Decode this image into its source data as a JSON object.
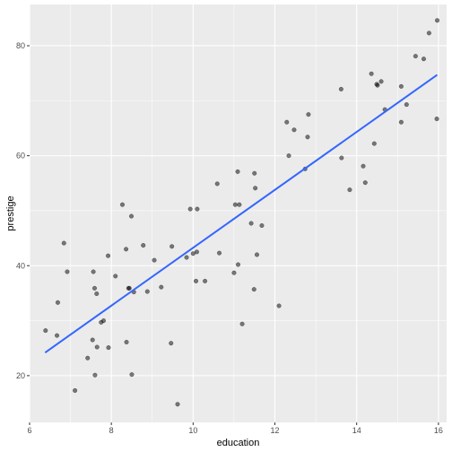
{
  "chart_data": {
    "type": "scatter",
    "title": "",
    "xlabel": "education",
    "ylabel": "prestige",
    "xlim": [
      6.0,
      16.2
    ],
    "ylim": [
      11.5,
      87.5
    ],
    "x_ticks": [
      6,
      8,
      10,
      12,
      14,
      16
    ],
    "x_tick_labels": [
      "6",
      "8",
      "10",
      "12",
      "14",
      "16"
    ],
    "y_ticks": [
      20,
      40,
      60,
      80
    ],
    "y_tick_labels": [
      "20",
      "40",
      "60",
      "80"
    ],
    "grid": true,
    "legend": "none",
    "colors": {
      "panel_background": "#EBEBEB",
      "grid_major": "#FFFFFF",
      "points": "#000000",
      "fit_line": "#3366FF"
    },
    "points": [
      {
        "x": 6.39,
        "y": 28.2
      },
      {
        "x": 6.67,
        "y": 27.3
      },
      {
        "x": 6.69,
        "y": 33.3
      },
      {
        "x": 6.84,
        "y": 44.1
      },
      {
        "x": 6.92,
        "y": 38.9
      },
      {
        "x": 7.11,
        "y": 17.3
      },
      {
        "x": 7.42,
        "y": 23.2
      },
      {
        "x": 7.54,
        "y": 26.5
      },
      {
        "x": 7.56,
        "y": 38.9
      },
      {
        "x": 7.59,
        "y": 35.9
      },
      {
        "x": 7.6,
        "y": 20.1
      },
      {
        "x": 7.64,
        "y": 34.9
      },
      {
        "x": 7.65,
        "y": 25.2
      },
      {
        "x": 7.75,
        "y": 29.7
      },
      {
        "x": 7.81,
        "y": 30.0
      },
      {
        "x": 7.92,
        "y": 41.8
      },
      {
        "x": 7.93,
        "y": 25.1
      },
      {
        "x": 8.1,
        "y": 38.1
      },
      {
        "x": 8.27,
        "y": 51.1
      },
      {
        "x": 8.36,
        "y": 43.0
      },
      {
        "x": 8.37,
        "y": 26.1
      },
      {
        "x": 8.42,
        "y": 35.9
      },
      {
        "x": 8.44,
        "y": 35.9
      },
      {
        "x": 8.49,
        "y": 49.0
      },
      {
        "x": 8.5,
        "y": 20.2
      },
      {
        "x": 8.55,
        "y": 35.2
      },
      {
        "x": 8.78,
        "y": 43.7
      },
      {
        "x": 8.88,
        "y": 35.3
      },
      {
        "x": 9.05,
        "y": 41.0
      },
      {
        "x": 9.22,
        "y": 36.1
      },
      {
        "x": 9.46,
        "y": 25.9
      },
      {
        "x": 9.48,
        "y": 43.5
      },
      {
        "x": 9.62,
        "y": 14.8
      },
      {
        "x": 9.84,
        "y": 41.5
      },
      {
        "x": 9.93,
        "y": 50.3
      },
      {
        "x": 10.0,
        "y": 42.2
      },
      {
        "x": 10.07,
        "y": 37.2
      },
      {
        "x": 10.09,
        "y": 42.5
      },
      {
        "x": 10.1,
        "y": 50.3
      },
      {
        "x": 10.29,
        "y": 37.2
      },
      {
        "x": 10.59,
        "y": 54.9
      },
      {
        "x": 10.64,
        "y": 42.3
      },
      {
        "x": 11.0,
        "y": 38.7
      },
      {
        "x": 11.03,
        "y": 51.1
      },
      {
        "x": 11.09,
        "y": 57.1
      },
      {
        "x": 11.1,
        "y": 40.2
      },
      {
        "x": 11.13,
        "y": 51.1
      },
      {
        "x": 11.2,
        "y": 29.4
      },
      {
        "x": 11.42,
        "y": 47.7
      },
      {
        "x": 11.49,
        "y": 35.7
      },
      {
        "x": 11.5,
        "y": 56.8
      },
      {
        "x": 11.52,
        "y": 54.1
      },
      {
        "x": 11.56,
        "y": 42.0
      },
      {
        "x": 11.68,
        "y": 47.3
      },
      {
        "x": 12.1,
        "y": 32.7
      },
      {
        "x": 12.29,
        "y": 66.1
      },
      {
        "x": 12.34,
        "y": 60.0
      },
      {
        "x": 12.47,
        "y": 64.7
      },
      {
        "x": 12.74,
        "y": 57.6
      },
      {
        "x": 12.8,
        "y": 63.4
      },
      {
        "x": 12.82,
        "y": 67.5
      },
      {
        "x": 13.62,
        "y": 72.1
      },
      {
        "x": 13.63,
        "y": 59.6
      },
      {
        "x": 13.83,
        "y": 53.8
      },
      {
        "x": 14.16,
        "y": 58.1
      },
      {
        "x": 14.21,
        "y": 55.1
      },
      {
        "x": 14.36,
        "y": 74.9
      },
      {
        "x": 14.43,
        "y": 62.2
      },
      {
        "x": 14.49,
        "y": 73.0
      },
      {
        "x": 14.51,
        "y": 72.8
      },
      {
        "x": 14.6,
        "y": 73.5
      },
      {
        "x": 14.69,
        "y": 68.4
      },
      {
        "x": 15.09,
        "y": 66.1
      },
      {
        "x": 15.09,
        "y": 72.6
      },
      {
        "x": 15.22,
        "y": 69.3
      },
      {
        "x": 15.44,
        "y": 78.1
      },
      {
        "x": 15.64,
        "y": 77.6
      },
      {
        "x": 15.77,
        "y": 82.3
      },
      {
        "x": 15.96,
        "y": 66.7
      },
      {
        "x": 15.97,
        "y": 84.6
      }
    ],
    "fit_line": {
      "x": [
        6.38,
        15.97
      ],
      "y": [
        24.2,
        74.7
      ]
    }
  }
}
